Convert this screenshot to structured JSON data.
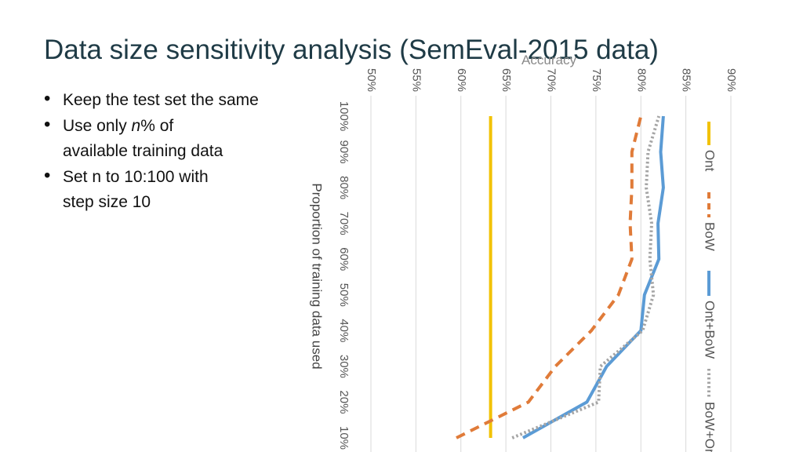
{
  "slide": {
    "title": "Data size sensitivity analysis (SemEval-2015 data)",
    "bullets": [
      {
        "lines": [
          "Keep the test set the same"
        ]
      },
      {
        "lines": [
          "Use only n% of",
          "available training data"
        ]
      },
      {
        "lines": [
          "Set n to 10:100 with",
          "step size 10"
        ]
      }
    ]
  },
  "chart_data": {
    "type": "line",
    "title": "Accuracy",
    "orientation": "rotated-90-clockwise",
    "xlabel": "Proportion of training data used",
    "ylabel": "Accuracy",
    "x": [
      10,
      20,
      30,
      40,
      50,
      60,
      70,
      80,
      90,
      100
    ],
    "x_tick_labels": [
      "10%",
      "20%",
      "30%",
      "40%",
      "50%",
      "60%",
      "70%",
      "80%",
      "90%",
      "100%"
    ],
    "y_tick_labels": [
      "50%",
      "55%",
      "60%",
      "65%",
      "70%",
      "75%",
      "80%",
      "85%",
      "90%"
    ],
    "ylim": [
      50,
      90
    ],
    "grid": true,
    "legend_position": "right",
    "series": [
      {
        "name": "Ont",
        "color": "#f2c200",
        "dash": "solid",
        "values": [
          63.3,
          63.3,
          63.3,
          63.3,
          63.3,
          63.3,
          63.3,
          63.3,
          63.3,
          63.3
        ]
      },
      {
        "name": "BoW",
        "color": "#e07b39",
        "dash": "dashed",
        "values": [
          59.5,
          67.5,
          70.5,
          74.5,
          77.5,
          79.0,
          78.8,
          79.0,
          79.0,
          80.0
        ]
      },
      {
        "name": "Ont+BoW",
        "color": "#5b9bd5",
        "dash": "solid",
        "values": [
          66.9,
          74.0,
          76.2,
          80.0,
          80.4,
          82.0,
          81.9,
          82.5,
          82.2,
          82.5
        ]
      },
      {
        "name": "BoW+Ont",
        "color": "#a5a5a5",
        "dash": "dotted",
        "values": [
          65.7,
          75.3,
          75.5,
          80.2,
          81.4,
          81.0,
          81.2,
          80.6,
          80.8,
          82.0
        ]
      }
    ]
  }
}
